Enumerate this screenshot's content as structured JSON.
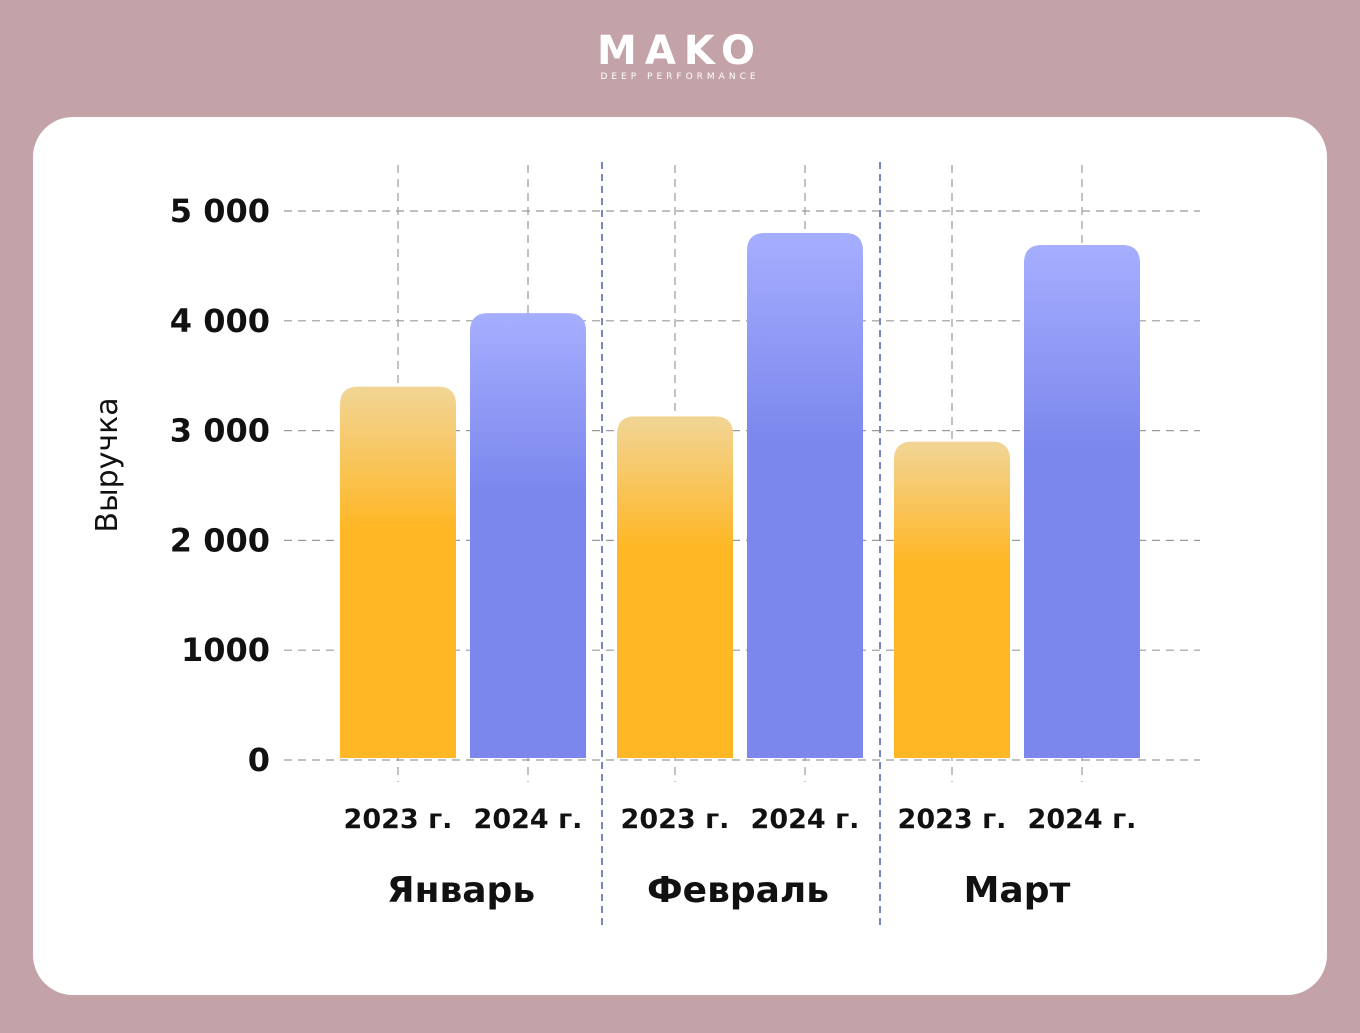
{
  "brand": {
    "name": "MAKO",
    "tagline": "DEEP PERFORMANCE"
  },
  "colors": {
    "background": "#c3a3a8",
    "card": "#ffffff",
    "series_2023_top": "#f1d596",
    "series_2023_bottom": "#ffb726",
    "series_2024_top": "#a6aeff",
    "series_2024_bottom": "#7b87ec",
    "grid": "#9a9a9a",
    "separator": "#7a86c4"
  },
  "chart_data": {
    "type": "bar",
    "title": "",
    "ylabel": "Выручка",
    "xlabel": "",
    "ylim": [
      0,
      5000
    ],
    "yticks": [
      0,
      1000,
      2000,
      3000,
      4000,
      5000
    ],
    "ytick_labels": [
      "0",
      "1000",
      "2 000",
      "3 000",
      "4 000",
      "5 000"
    ],
    "grid": true,
    "groups": [
      "Январь",
      "Февраль",
      "Март"
    ],
    "series": [
      {
        "name": "2023 г.",
        "values": [
          3400,
          3130,
          2900
        ]
      },
      {
        "name": "2024 г.",
        "values": [
          4070,
          4800,
          4690
        ]
      }
    ]
  }
}
